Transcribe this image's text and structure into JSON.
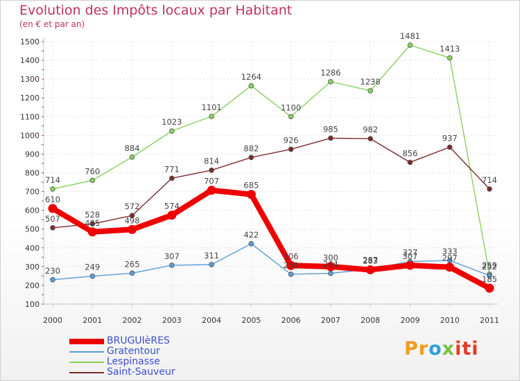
{
  "header": {
    "title": "Evolution des Impôts locaux par Habitant",
    "subtitle": "(en € et par an)"
  },
  "brand": {
    "parts": [
      "Pr",
      "o",
      "x",
      "iti"
    ],
    "colors": [
      "#f29b1a",
      "#2f9fd8",
      "#7cc242",
      "#e63a2a"
    ]
  },
  "chart_data": {
    "type": "line",
    "title": "Evolution des Impôts locaux par Habitant",
    "subtitle": "(en € et par an)",
    "x": [
      "2000",
      "2001",
      "2002",
      "2003",
      "2004",
      "2005",
      "2006",
      "2007",
      "2008",
      "2009",
      "2010",
      "2011"
    ],
    "ylim": [
      100,
      1500
    ],
    "yticks": [
      100,
      200,
      300,
      400,
      500,
      600,
      700,
      800,
      900,
      1000,
      1100,
      1200,
      1300,
      1400,
      1500
    ],
    "grid": true,
    "legend_position": "bottom-left",
    "series": [
      {
        "name": "BRUGUIèRES",
        "color": "#ee0000",
        "values": [
          610,
          485,
          498,
          574,
          707,
          685,
          306,
          300,
          283,
          307,
          297,
          185
        ]
      },
      {
        "name": "Gratentour",
        "color": "#5b9bd5",
        "values": [
          230,
          249,
          265,
          307,
          311,
          422,
          259,
          264,
          287,
          327,
          333,
          252
        ]
      },
      {
        "name": "Lespinasse",
        "color": "#88d060",
        "values": [
          714,
          760,
          884,
          1023,
          1101,
          1264,
          1100,
          1286,
          1238,
          1481,
          1413,
          259
        ]
      },
      {
        "name": "Saint-Sauveur",
        "color": "#7a2a2a",
        "values": [
          507,
          528,
          572,
          771,
          814,
          882,
          926,
          985,
          982,
          856,
          937,
          714
        ]
      }
    ]
  }
}
